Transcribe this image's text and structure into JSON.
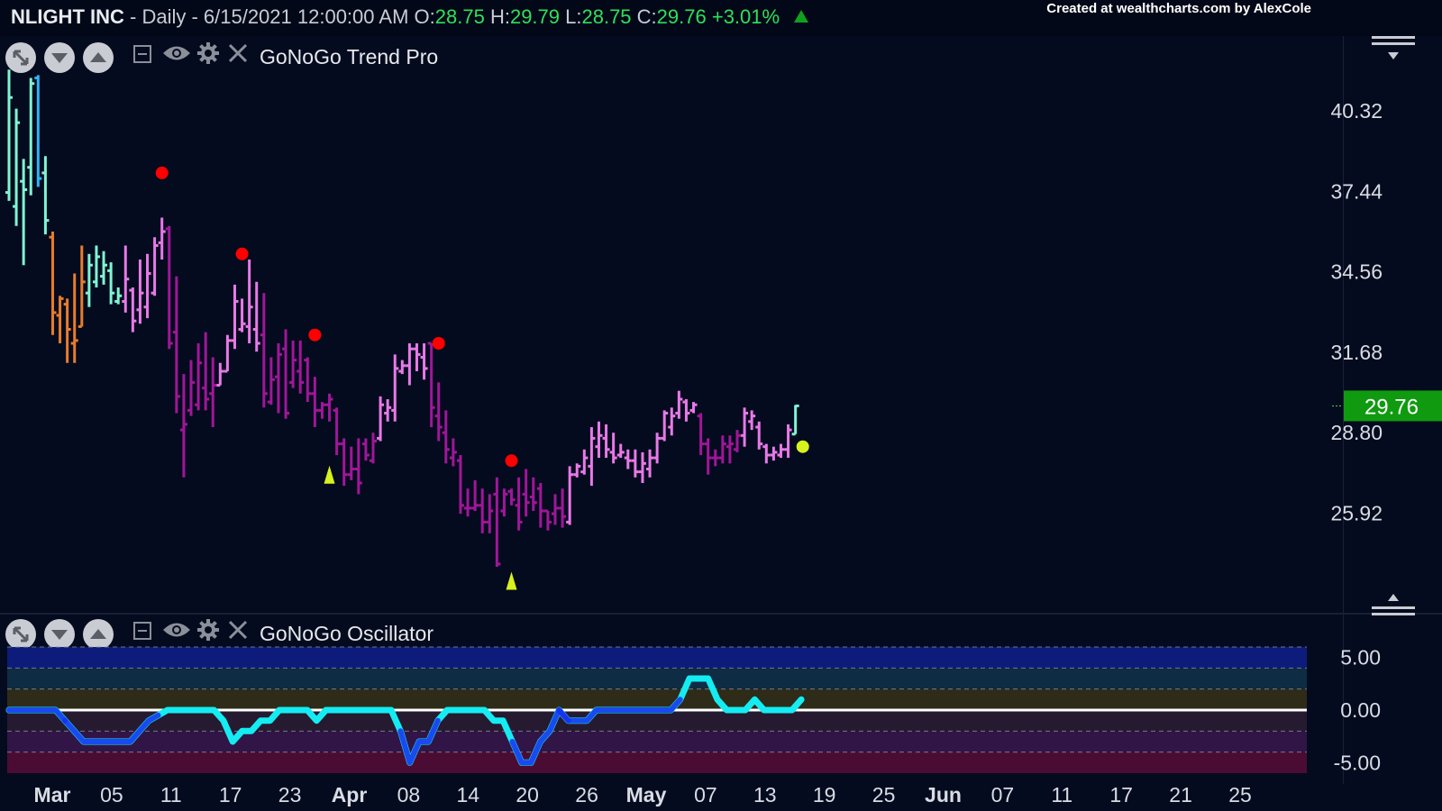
{
  "header": {
    "symbol": "NLIGHT INC",
    "info": " - Daily - 6/15/2021 12:00:00 AM",
    "o_label": " O:",
    "o_value": "28.75",
    "h_label": " H:",
    "h_value": "29.79",
    "l_label": " L:",
    "l_value": "28.75",
    "c_label": " C:",
    "c_value": "29.76",
    "change": " +3.01%",
    "credit": "Created at wealthcharts.com by AlexCole"
  },
  "colors": {
    "background": "#050b1e",
    "up_green": "#2ee05a",
    "price_badge": "#109a10",
    "strong_go": "#29b6f6",
    "go": "#7ff5d4",
    "nogo": "#e879e8",
    "strong_nogo": "#a0169a",
    "caution": "#e87d2b",
    "no_go_dot": "#ff0000",
    "go_trend_marker": "#d7f21c",
    "oscillator_line": "#14ecf2",
    "oscillator_heavy": "#1a2ef0",
    "zero_line": "#ffffff"
  },
  "panels": {
    "trend": {
      "title": "GoNoGo Trend Pro"
    },
    "oscillator": {
      "title": "GoNoGo Oscillator"
    }
  },
  "icons": [
    "expand-icon",
    "collapse-down-icon",
    "collapse-up-icon",
    "minimize-icon",
    "eye-icon",
    "gear-icon",
    "close-icon",
    "menu-icon"
  ],
  "price_axis": {
    "labels": [
      "40.32",
      "37.44",
      "34.56",
      "31.68",
      "28.80",
      "25.92"
    ],
    "last_price": "29.76"
  },
  "osc_axis": {
    "labels": [
      "5.00",
      "0.00",
      "-5.00"
    ]
  },
  "date_axis": {
    "labels": [
      {
        "text": "Mar",
        "bold": true
      },
      {
        "text": "05"
      },
      {
        "text": "11"
      },
      {
        "text": "17"
      },
      {
        "text": "23"
      },
      {
        "text": "Apr",
        "bold": true
      },
      {
        "text": "08"
      },
      {
        "text": "14"
      },
      {
        "text": "20"
      },
      {
        "text": "26"
      },
      {
        "text": "May",
        "bold": true
      },
      {
        "text": "07"
      },
      {
        "text": "13"
      },
      {
        "text": "19"
      },
      {
        "text": "25"
      },
      {
        "text": "Jun",
        "bold": true
      },
      {
        "text": "07"
      },
      {
        "text": "11"
      },
      {
        "text": "17"
      },
      {
        "text": "21"
      },
      {
        "text": "25"
      }
    ]
  },
  "chart_data": [
    {
      "type": "ohlc",
      "title": "GoNoGo Trend Pro",
      "ylim": [
        23.0,
        43.0
      ],
      "color_key": {
        "s": "strong_go",
        "g": "go",
        "c": "caution",
        "n": "nogo",
        "x": "strong_nogo"
      },
      "bars": [
        {
          "h": 41.8,
          "l": 37.1,
          "o": 37.4,
          "c": 40.8,
          "t": "g"
        },
        {
          "h": 40.4,
          "l": 36.2,
          "o": 36.9,
          "c": 39.9,
          "t": "g"
        },
        {
          "h": 38.6,
          "l": 34.8,
          "o": 37.8,
          "c": 37.5,
          "t": "g"
        },
        {
          "h": 41.5,
          "l": 37.3,
          "o": 38.3,
          "c": 41.3,
          "t": "g"
        },
        {
          "h": 41.6,
          "l": 37.6,
          "o": 41.5,
          "c": 37.9,
          "t": "s"
        },
        {
          "h": 38.7,
          "l": 35.9,
          "o": 38.1,
          "c": 36.4,
          "t": "g"
        },
        {
          "h": 36.0,
          "l": 32.3,
          "o": 35.8,
          "c": 33.1,
          "t": "c"
        },
        {
          "h": 33.7,
          "l": 32.0,
          "o": 33.0,
          "c": 33.6,
          "t": "c"
        },
        {
          "h": 33.6,
          "l": 31.3,
          "o": 33.4,
          "c": 32.5,
          "t": "c"
        },
        {
          "h": 34.5,
          "l": 31.3,
          "o": 32.0,
          "c": 32.1,
          "t": "c"
        },
        {
          "h": 35.5,
          "l": 32.6,
          "o": 32.6,
          "c": 34.2,
          "t": "c"
        },
        {
          "h": 35.2,
          "l": 33.3,
          "o": 33.8,
          "c": 34.8,
          "t": "g"
        },
        {
          "h": 35.5,
          "l": 34.0,
          "o": 34.2,
          "c": 35.1,
          "t": "g"
        },
        {
          "h": 35.3,
          "l": 34.1,
          "o": 34.4,
          "c": 34.8,
          "t": "g"
        },
        {
          "h": 34.9,
          "l": 33.4,
          "o": 34.6,
          "c": 33.8,
          "t": "g"
        },
        {
          "h": 34.0,
          "l": 33.4,
          "o": 33.5,
          "c": 33.7,
          "t": "g"
        },
        {
          "h": 35.5,
          "l": 33.1,
          "o": 33.5,
          "c": 34.3,
          "t": "n"
        },
        {
          "h": 34.0,
          "l": 32.4,
          "o": 33.9,
          "c": 32.8,
          "t": "n"
        },
        {
          "h": 35.0,
          "l": 32.7,
          "o": 33.2,
          "c": 33.8,
          "t": "n"
        },
        {
          "h": 35.2,
          "l": 32.9,
          "o": 33.3,
          "c": 34.5,
          "t": "n"
        },
        {
          "h": 35.8,
          "l": 33.7,
          "o": 33.8,
          "c": 35.5,
          "t": "n"
        },
        {
          "h": 36.5,
          "l": 35.0,
          "o": 35.6,
          "c": 36.0,
          "t": "n"
        },
        {
          "h": 36.2,
          "l": 31.8,
          "o": 36.1,
          "c": 32.0,
          "t": "x"
        },
        {
          "h": 34.4,
          "l": 29.5,
          "o": 32.4,
          "c": 30.1,
          "t": "x"
        },
        {
          "h": 30.9,
          "l": 27.2,
          "o": 28.9,
          "c": 29.1,
          "t": "x"
        },
        {
          "h": 31.4,
          "l": 29.4,
          "o": 29.6,
          "c": 30.6,
          "t": "x"
        },
        {
          "h": 32.0,
          "l": 29.6,
          "o": 29.8,
          "c": 31.3,
          "t": "x"
        },
        {
          "h": 32.4,
          "l": 29.6,
          "o": 30.4,
          "c": 30.0,
          "t": "x"
        },
        {
          "h": 31.5,
          "l": 29.0,
          "o": 30.2,
          "c": 30.5,
          "t": "x"
        },
        {
          "h": 31.3,
          "l": 30.5,
          "o": 30.5,
          "c": 31.0,
          "t": "n"
        },
        {
          "h": 32.3,
          "l": 31.0,
          "o": 31.0,
          "c": 32.1,
          "t": "n"
        },
        {
          "h": 34.1,
          "l": 31.8,
          "o": 32.1,
          "c": 33.5,
          "t": "n"
        },
        {
          "h": 33.6,
          "l": 32.4,
          "o": 32.5,
          "c": 32.7,
          "t": "n"
        },
        {
          "h": 35.0,
          "l": 32.0,
          "o": 32.6,
          "c": 33.3,
          "t": "n"
        },
        {
          "h": 34.2,
          "l": 31.7,
          "o": 32.5,
          "c": 32.0,
          "t": "n"
        },
        {
          "h": 33.8,
          "l": 29.7,
          "o": 32.3,
          "c": 30.2,
          "t": "x"
        },
        {
          "h": 31.5,
          "l": 29.8,
          "o": 29.9,
          "c": 30.7,
          "t": "x"
        },
        {
          "h": 32.0,
          "l": 29.5,
          "o": 30.8,
          "c": 31.6,
          "t": "x"
        },
        {
          "h": 32.5,
          "l": 29.3,
          "o": 31.8,
          "c": 29.5,
          "t": "x"
        },
        {
          "h": 32.1,
          "l": 30.4,
          "o": 30.6,
          "c": 31.4,
          "t": "x"
        },
        {
          "h": 32.1,
          "l": 30.2,
          "o": 31.0,
          "c": 30.6,
          "t": "x"
        },
        {
          "h": 31.5,
          "l": 29.9,
          "o": 31.4,
          "c": 30.2,
          "t": "x"
        },
        {
          "h": 30.8,
          "l": 29.0,
          "o": 30.2,
          "c": 29.6,
          "t": "x"
        },
        {
          "h": 29.9,
          "l": 29.3,
          "o": 29.6,
          "c": 29.8,
          "t": "x"
        },
        {
          "h": 30.2,
          "l": 29.2,
          "o": 29.8,
          "c": 30.0,
          "t": "x"
        },
        {
          "h": 29.7,
          "l": 28.0,
          "o": 29.6,
          "c": 28.4,
          "t": "x"
        },
        {
          "h": 28.6,
          "l": 26.9,
          "o": 28.4,
          "c": 27.3,
          "t": "x"
        },
        {
          "h": 28.3,
          "l": 27.1,
          "o": 27.3,
          "c": 27.5,
          "t": "x"
        },
        {
          "h": 28.6,
          "l": 26.6,
          "o": 27.5,
          "c": 27.0,
          "t": "x"
        },
        {
          "h": 28.6,
          "l": 27.8,
          "o": 28.4,
          "c": 28.0,
          "t": "x"
        },
        {
          "h": 28.8,
          "l": 27.7,
          "o": 27.8,
          "c": 28.5,
          "t": "x"
        },
        {
          "h": 30.1,
          "l": 28.5,
          "o": 28.6,
          "c": 29.8,
          "t": "n"
        },
        {
          "h": 30.0,
          "l": 29.2,
          "o": 29.5,
          "c": 29.7,
          "t": "n"
        },
        {
          "h": 31.6,
          "l": 29.2,
          "o": 29.6,
          "c": 31.1,
          "t": "n"
        },
        {
          "h": 31.4,
          "l": 30.9,
          "o": 31.0,
          "c": 31.2,
          "t": "n"
        },
        {
          "h": 32.0,
          "l": 30.5,
          "o": 31.2,
          "c": 31.8,
          "t": "n"
        },
        {
          "h": 32.0,
          "l": 31.0,
          "o": 31.8,
          "c": 31.6,
          "t": "n"
        },
        {
          "h": 32.0,
          "l": 30.7,
          "o": 31.5,
          "c": 31.1,
          "t": "n"
        },
        {
          "h": 32.0,
          "l": 29.0,
          "o": 32.0,
          "c": 29.7,
          "t": "x"
        },
        {
          "h": 30.6,
          "l": 28.5,
          "o": 29.4,
          "c": 29.0,
          "t": "x"
        },
        {
          "h": 29.6,
          "l": 27.7,
          "o": 28.8,
          "c": 28.2,
          "t": "x"
        },
        {
          "h": 28.6,
          "l": 27.6,
          "o": 27.9,
          "c": 28.1,
          "t": "x"
        },
        {
          "h": 28.0,
          "l": 25.9,
          "o": 27.8,
          "c": 26.2,
          "t": "x"
        },
        {
          "h": 26.8,
          "l": 25.8,
          "o": 26.1,
          "c": 26.1,
          "t": "x"
        },
        {
          "h": 27.1,
          "l": 26.0,
          "o": 26.1,
          "c": 26.2,
          "t": "x"
        },
        {
          "h": 26.8,
          "l": 25.2,
          "o": 26.2,
          "c": 25.6,
          "t": "x"
        },
        {
          "h": 26.6,
          "l": 25.2,
          "o": 25.6,
          "c": 26.0,
          "t": "x"
        },
        {
          "h": 27.2,
          "l": 24.0,
          "o": 26.6,
          "c": 24.1,
          "t": "x"
        },
        {
          "h": 26.8,
          "l": 25.8,
          "o": 26.0,
          "c": 26.6,
          "t": "x"
        },
        {
          "h": 26.8,
          "l": 26.2,
          "o": 26.7,
          "c": 26.4,
          "t": "x"
        },
        {
          "h": 27.2,
          "l": 25.3,
          "o": 26.2,
          "c": 25.6,
          "t": "x"
        },
        {
          "h": 27.5,
          "l": 25.8,
          "o": 26.6,
          "c": 26.3,
          "t": "x"
        },
        {
          "h": 27.2,
          "l": 26.0,
          "o": 26.5,
          "c": 26.3,
          "t": "x"
        },
        {
          "h": 27.0,
          "l": 25.4,
          "o": 26.8,
          "c": 26.0,
          "t": "x"
        },
        {
          "h": 26.0,
          "l": 25.3,
          "o": 26.0,
          "c": 25.6,
          "t": "x"
        },
        {
          "h": 26.6,
          "l": 25.5,
          "o": 25.9,
          "c": 26.1,
          "t": "x"
        },
        {
          "h": 26.8,
          "l": 25.4,
          "o": 26.1,
          "c": 25.8,
          "t": "x"
        },
        {
          "h": 27.6,
          "l": 25.5,
          "o": 25.6,
          "c": 27.3,
          "t": "n"
        },
        {
          "h": 27.7,
          "l": 27.2,
          "o": 27.3,
          "c": 27.6,
          "t": "n"
        },
        {
          "h": 28.2,
          "l": 27.3,
          "o": 27.4,
          "c": 27.9,
          "t": "n"
        },
        {
          "h": 29.0,
          "l": 26.9,
          "o": 27.6,
          "c": 28.6,
          "t": "n"
        },
        {
          "h": 29.2,
          "l": 27.9,
          "o": 28.3,
          "c": 28.7,
          "t": "n"
        },
        {
          "h": 29.1,
          "l": 27.9,
          "o": 28.6,
          "c": 28.2,
          "t": "n"
        },
        {
          "h": 28.8,
          "l": 27.7,
          "o": 28.1,
          "c": 27.9,
          "t": "n"
        },
        {
          "h": 28.4,
          "l": 27.9,
          "o": 28.0,
          "c": 28.1,
          "t": "n"
        },
        {
          "h": 28.2,
          "l": 27.5,
          "o": 27.9,
          "c": 27.8,
          "t": "n"
        },
        {
          "h": 28.2,
          "l": 27.2,
          "o": 27.8,
          "c": 27.4,
          "t": "n"
        },
        {
          "h": 28.1,
          "l": 27.0,
          "o": 27.4,
          "c": 27.7,
          "t": "n"
        },
        {
          "h": 28.2,
          "l": 27.2,
          "o": 27.5,
          "c": 27.9,
          "t": "n"
        },
        {
          "h": 28.8,
          "l": 27.7,
          "o": 27.9,
          "c": 28.6,
          "t": "n"
        },
        {
          "h": 29.6,
          "l": 28.5,
          "o": 28.6,
          "c": 29.5,
          "t": "n"
        },
        {
          "h": 29.7,
          "l": 28.7,
          "o": 29.0,
          "c": 29.4,
          "t": "n"
        },
        {
          "h": 30.3,
          "l": 29.3,
          "o": 29.5,
          "c": 30.0,
          "t": "n"
        },
        {
          "h": 30.0,
          "l": 29.2,
          "o": 29.9,
          "c": 29.5,
          "t": "n"
        },
        {
          "h": 29.9,
          "l": 29.5,
          "o": 29.6,
          "c": 29.8,
          "t": "n"
        },
        {
          "h": 29.5,
          "l": 28.0,
          "o": 29.4,
          "c": 28.4,
          "t": "x"
        },
        {
          "h": 28.6,
          "l": 27.3,
          "o": 28.4,
          "c": 27.9,
          "t": "x"
        },
        {
          "h": 28.2,
          "l": 27.6,
          "o": 27.9,
          "c": 27.9,
          "t": "x"
        },
        {
          "h": 28.7,
          "l": 27.7,
          "o": 27.9,
          "c": 28.4,
          "t": "x"
        },
        {
          "h": 28.7,
          "l": 27.7,
          "o": 28.3,
          "c": 28.4,
          "t": "x"
        },
        {
          "h": 28.9,
          "l": 28.1,
          "o": 28.2,
          "c": 28.7,
          "t": "x"
        },
        {
          "h": 29.7,
          "l": 28.3,
          "o": 28.7,
          "c": 29.5,
          "t": "n"
        },
        {
          "h": 29.6,
          "l": 28.9,
          "o": 29.2,
          "c": 29.4,
          "t": "n"
        },
        {
          "h": 29.2,
          "l": 28.2,
          "o": 29.0,
          "c": 28.4,
          "t": "n"
        },
        {
          "h": 28.4,
          "l": 27.7,
          "o": 28.3,
          "c": 28.0,
          "t": "n"
        },
        {
          "h": 28.3,
          "l": 27.8,
          "o": 28.0,
          "c": 28.1,
          "t": "n"
        },
        {
          "h": 28.4,
          "l": 27.9,
          "o": 28.0,
          "c": 28.2,
          "t": "n"
        },
        {
          "h": 29.1,
          "l": 27.9,
          "o": 28.2,
          "c": 28.9,
          "t": "n"
        },
        {
          "h": 29.79,
          "l": 28.75,
          "o": 28.75,
          "c": 29.76,
          "t": "g"
        }
      ],
      "nogo_countertrend_dots": [
        {
          "bar": 21,
          "price": 38.1
        },
        {
          "bar": 32,
          "price": 35.2
        },
        {
          "bar": 42,
          "price": 32.3
        },
        {
          "bar": 59,
          "price": 32.0
        },
        {
          "bar": 69,
          "price": 27.8
        }
      ],
      "go_trend_triangles": [
        {
          "bar": 44,
          "price": 27.3
        },
        {
          "bar": 69,
          "price": 23.5
        }
      ],
      "go_dots": [
        {
          "bar": 109,
          "price": 28.3
        }
      ]
    },
    {
      "type": "line",
      "title": "GoNoGo Oscillator",
      "ylim": [
        -6,
        6
      ],
      "zero_line": 0,
      "bands": [
        {
          "from": 4,
          "to": 6,
          "color": "#0d1c7a"
        },
        {
          "from": 2,
          "to": 4,
          "color": "#0e2c44"
        },
        {
          "from": 0,
          "to": 2,
          "color": "#2e2b18"
        },
        {
          "from": -2,
          "to": 0,
          "color": "#251a30"
        },
        {
          "from": -4,
          "to": -2,
          "color": "#311547"
        },
        {
          "from": -6,
          "to": -4,
          "color": "#4b0c33"
        }
      ],
      "dashed_levels": [
        6,
        4,
        2,
        -2,
        -4
      ],
      "values": [
        0,
        0,
        0,
        0,
        0,
        0,
        -1,
        -2,
        -3,
        -3,
        -3,
        -3,
        -3,
        -3,
        -2,
        -1,
        -0.5,
        0,
        0,
        0,
        0,
        0,
        0,
        -1,
        -3,
        -2,
        -2,
        -1,
        -1,
        0,
        0,
        0,
        0,
        -1,
        0,
        0,
        0,
        0,
        0,
        0,
        0,
        0,
        -2,
        -5,
        -3,
        -3,
        -1,
        0,
        0,
        0,
        0,
        0,
        -1,
        -1,
        -3,
        -5,
        -5,
        -3,
        -2,
        0,
        -1,
        -1,
        -1,
        0,
        0,
        0,
        0,
        0,
        0,
        0,
        0,
        0,
        1,
        3,
        3,
        3,
        1,
        0,
        0,
        0,
        1,
        0,
        0,
        0,
        0,
        1
      ],
      "heavy_segments": [
        [
          0,
          6
        ],
        [
          6,
          16
        ],
        [
          42,
          46
        ],
        [
          54,
          60
        ],
        [
          59,
          72
        ]
      ]
    }
  ]
}
